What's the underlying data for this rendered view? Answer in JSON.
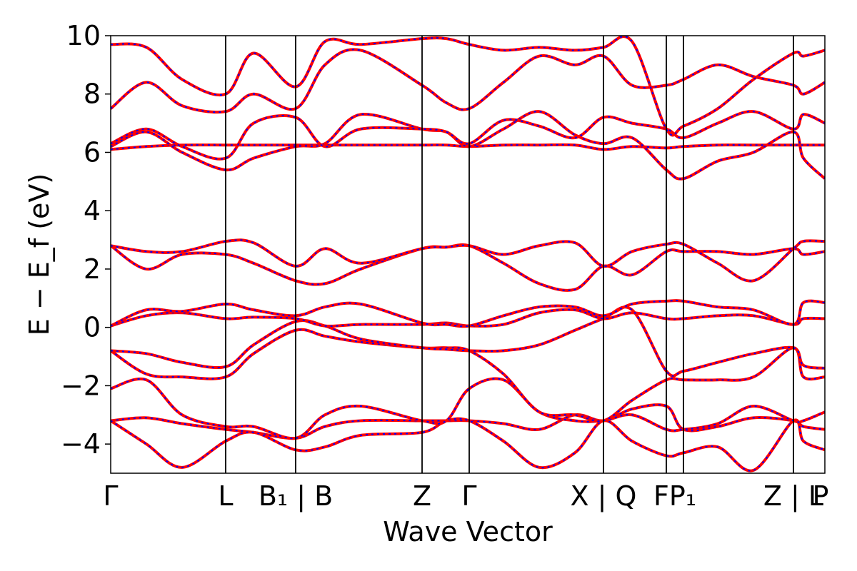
{
  "chart_data": {
    "type": "line",
    "title": "",
    "xlabel": "Wave Vector",
    "ylabel": "E − E_f (eV)",
    "ylim": [
      -5,
      10
    ],
    "yticks": [
      -4,
      -2,
      0,
      2,
      4,
      6,
      8,
      10
    ],
    "ytick_labels": [
      "−4",
      "−2",
      "0",
      "2",
      "4",
      "6",
      "8",
      "10"
    ],
    "xlim": [
      0,
      1
    ],
    "kpath_positions": [
      0.0,
      0.161,
      0.259,
      0.436,
      0.502,
      0.69,
      0.778,
      0.802,
      0.956,
      1.0
    ],
    "kpath_lines": [
      0.161,
      0.259,
      0.436,
      0.502,
      0.69,
      0.778,
      0.802,
      0.956
    ],
    "xtick_labels": [
      {
        "pos": 0.0,
        "text": "Γ"
      },
      {
        "pos": 0.161,
        "text": "L"
      },
      {
        "pos": 0.259,
        "text": "B₁ | B"
      },
      {
        "pos": 0.436,
        "text": "Z"
      },
      {
        "pos": 0.502,
        "text": "Γ"
      },
      {
        "pos": 0.69,
        "text": "X | Q"
      },
      {
        "pos": 0.79,
        "text": "FP₁"
      },
      {
        "pos": 0.956,
        "text": "Z | L"
      },
      {
        "pos": 1.0,
        "text": "P"
      }
    ],
    "colors": {
      "dft": "#ff0000",
      "wannier": "#0000ff",
      "kpath_line": "#000000"
    },
    "series": [
      {
        "x": [
          0.0,
          0.05,
          0.1,
          0.161,
          0.2,
          0.259,
          0.3,
          0.35,
          0.436,
          0.47,
          0.502,
          0.55,
          0.6,
          0.65,
          0.69,
          0.73,
          0.778,
          0.802,
          0.85,
          0.9,
          0.956,
          0.97,
          1.0
        ],
        "values": [
          -3.2,
          -3.1,
          -3.3,
          -3.5,
          -3.6,
          -3.8,
          -3.4,
          -3.2,
          -3.2,
          -3.2,
          -3.2,
          -3.3,
          -3.5,
          -3.0,
          -3.2,
          -2.8,
          -2.7,
          -3.5,
          -3.4,
          -3.1,
          -3.2,
          -3.4,
          -3.5
        ]
      },
      {
        "x": [
          0.0,
          0.05,
          0.1,
          0.161,
          0.2,
          0.259,
          0.3,
          0.35,
          0.436,
          0.47,
          0.502,
          0.55,
          0.6,
          0.65,
          0.69,
          0.73,
          0.778,
          0.802,
          0.85,
          0.9,
          0.956,
          0.97,
          1.0
        ],
        "values": [
          -3.2,
          -4.0,
          -4.8,
          -3.9,
          -3.6,
          -4.2,
          -4.1,
          -3.7,
          -3.6,
          -3.2,
          -3.2,
          -3.9,
          -4.8,
          -4.3,
          -3.2,
          -3.9,
          -4.4,
          -4.3,
          -4.1,
          -4.9,
          -3.2,
          -3.9,
          -4.2
        ]
      },
      {
        "x": [
          0.0,
          0.05,
          0.1,
          0.161,
          0.2,
          0.259,
          0.3,
          0.35,
          0.436,
          0.47,
          0.502,
          0.55,
          0.6,
          0.65,
          0.69,
          0.73,
          0.778,
          0.802,
          0.85,
          0.9,
          0.956,
          0.97,
          1.0
        ],
        "values": [
          -2.1,
          -1.8,
          -3.0,
          -3.4,
          -3.4,
          -3.8,
          -3.0,
          -2.7,
          -3.2,
          -3.2,
          -2.1,
          -1.8,
          -2.9,
          -3.2,
          -3.2,
          -3.0,
          -3.5,
          -3.5,
          -3.3,
          -2.7,
          -3.2,
          -3.2,
          -2.9
        ]
      },
      {
        "x": [
          0.0,
          0.05,
          0.1,
          0.161,
          0.2,
          0.259,
          0.3,
          0.35,
          0.436,
          0.47,
          0.502,
          0.55,
          0.6,
          0.65,
          0.69,
          0.73,
          0.778,
          0.802,
          0.85,
          0.9,
          0.956,
          0.97,
          1.0
        ],
        "values": [
          -0.8,
          -1.6,
          -1.7,
          -1.7,
          -0.9,
          -0.1,
          -0.3,
          -0.5,
          -0.7,
          -0.7,
          -0.8,
          -1.6,
          -2.9,
          -3.0,
          -3.2,
          -2.5,
          -1.8,
          -1.8,
          -1.8,
          -1.7,
          -0.7,
          -1.7,
          -1.7
        ]
      },
      {
        "x": [
          0.0,
          0.05,
          0.1,
          0.161,
          0.2,
          0.259,
          0.3,
          0.35,
          0.436,
          0.47,
          0.502,
          0.55,
          0.6,
          0.65,
          0.69,
          0.73,
          0.778,
          0.802,
          0.85,
          0.9,
          0.956,
          0.97,
          1.0
        ],
        "values": [
          -0.8,
          -0.9,
          -1.2,
          -1.35,
          -0.6,
          0.2,
          0.05,
          -0.4,
          -0.7,
          -0.75,
          -0.8,
          -0.8,
          -0.6,
          -0.1,
          0.3,
          0.6,
          -1.5,
          -1.5,
          -1.2,
          -0.9,
          -0.7,
          -1.3,
          -1.4
        ]
      },
      {
        "x": [
          0.0,
          0.05,
          0.1,
          0.161,
          0.2,
          0.259,
          0.3,
          0.35,
          0.436,
          0.47,
          0.502,
          0.55,
          0.6,
          0.65,
          0.69,
          0.73,
          0.778,
          0.802,
          0.85,
          0.9,
          0.956,
          0.97,
          1.0
        ],
        "values": [
          0.05,
          0.4,
          0.5,
          0.3,
          0.35,
          0.3,
          0.05,
          0.1,
          0.1,
          0.15,
          0.05,
          0.1,
          0.5,
          0.6,
          0.3,
          0.5,
          0.3,
          0.3,
          0.4,
          0.4,
          0.1,
          0.3,
          0.3
        ]
      },
      {
        "x": [
          0.0,
          0.05,
          0.1,
          0.161,
          0.2,
          0.259,
          0.3,
          0.35,
          0.436,
          0.47,
          0.502,
          0.55,
          0.6,
          0.65,
          0.69,
          0.73,
          0.778,
          0.802,
          0.85,
          0.9,
          0.956,
          0.97,
          1.0
        ],
        "values": [
          0.05,
          0.6,
          0.55,
          0.8,
          0.6,
          0.4,
          0.7,
          0.8,
          0.15,
          0.1,
          0.05,
          0.4,
          0.7,
          0.7,
          0.4,
          0.8,
          0.9,
          0.9,
          0.7,
          0.6,
          0.1,
          0.85,
          0.85
        ]
      },
      {
        "x": [
          0.0,
          0.05,
          0.1,
          0.161,
          0.2,
          0.259,
          0.3,
          0.35,
          0.436,
          0.47,
          0.502,
          0.55,
          0.6,
          0.65,
          0.69,
          0.73,
          0.778,
          0.802,
          0.85,
          0.9,
          0.956,
          0.97,
          1.0
        ],
        "values": [
          2.8,
          2.0,
          2.5,
          2.5,
          2.2,
          1.6,
          1.5,
          2.0,
          2.7,
          2.75,
          2.8,
          2.2,
          1.5,
          1.3,
          2.1,
          1.8,
          2.6,
          2.6,
          2.6,
          2.5,
          2.7,
          2.5,
          2.6
        ]
      },
      {
        "x": [
          0.0,
          0.05,
          0.1,
          0.161,
          0.2,
          0.259,
          0.3,
          0.35,
          0.436,
          0.47,
          0.502,
          0.55,
          0.6,
          0.65,
          0.69,
          0.73,
          0.778,
          0.802,
          0.85,
          0.9,
          0.956,
          0.97,
          1.0
        ],
        "values": [
          2.8,
          2.6,
          2.6,
          2.95,
          2.9,
          2.1,
          2.7,
          2.2,
          2.7,
          2.75,
          2.8,
          2.5,
          2.8,
          2.9,
          2.1,
          2.6,
          2.85,
          2.85,
          2.2,
          1.6,
          2.7,
          2.95,
          2.95
        ]
      },
      {
        "x": [
          0.0,
          0.05,
          0.1,
          0.161,
          0.2,
          0.259,
          0.3,
          0.35,
          0.436,
          0.47,
          0.502,
          0.55,
          0.6,
          0.65,
          0.69,
          0.73,
          0.778,
          0.802,
          0.85,
          0.9,
          0.956,
          0.97,
          1.0
        ],
        "values": [
          6.1,
          6.2,
          6.25,
          6.25,
          6.25,
          6.25,
          6.25,
          6.25,
          6.25,
          6.25,
          6.2,
          6.25,
          6.25,
          6.25,
          6.1,
          6.2,
          6.15,
          6.2,
          6.25,
          6.25,
          6.25,
          6.25,
          6.25
        ]
      },
      {
        "x": [
          0.0,
          0.05,
          0.1,
          0.161,
          0.2,
          0.259,
          0.3,
          0.35,
          0.436,
          0.47,
          0.502,
          0.55,
          0.6,
          0.65,
          0.69,
          0.73,
          0.778,
          0.802,
          0.85,
          0.9,
          0.956,
          0.97,
          1.0
        ],
        "values": [
          6.2,
          6.7,
          6.0,
          5.4,
          5.8,
          6.2,
          6.3,
          7.3,
          6.8,
          6.7,
          6.2,
          6.8,
          7.4,
          6.6,
          6.3,
          6.5,
          5.4,
          5.1,
          5.7,
          6.0,
          6.7,
          5.8,
          5.1
        ]
      },
      {
        "x": [
          0.0,
          0.05,
          0.1,
          0.161,
          0.2,
          0.259,
          0.3,
          0.35,
          0.436,
          0.47,
          0.502,
          0.55,
          0.6,
          0.65,
          0.69,
          0.73,
          0.778,
          0.802,
          0.85,
          0.9,
          0.956,
          0.97,
          1.0
        ],
        "values": [
          6.3,
          6.8,
          6.2,
          5.8,
          7.0,
          7.2,
          6.2,
          6.8,
          6.8,
          6.7,
          6.3,
          7.1,
          6.9,
          6.5,
          7.2,
          7.0,
          6.8,
          6.5,
          7.0,
          7.4,
          6.8,
          7.3,
          7.0
        ]
      },
      {
        "x": [
          0.0,
          0.05,
          0.1,
          0.161,
          0.2,
          0.259,
          0.3,
          0.35,
          0.436,
          0.47,
          0.502,
          0.55,
          0.6,
          0.65,
          0.69,
          0.73,
          0.778,
          0.802,
          0.85,
          0.9,
          0.956,
          0.97,
          1.0
        ],
        "values": [
          7.5,
          8.4,
          7.6,
          7.4,
          8.0,
          7.5,
          9.0,
          9.5,
          8.3,
          7.7,
          7.5,
          8.4,
          9.3,
          9.0,
          9.3,
          8.3,
          8.3,
          8.5,
          9.0,
          8.6,
          8.3,
          8.0,
          8.4
        ]
      },
      {
        "x": [
          0.0,
          0.05,
          0.1,
          0.161,
          0.2,
          0.259,
          0.3,
          0.35,
          0.436,
          0.47,
          0.502,
          0.55,
          0.6,
          0.65,
          0.69,
          0.73,
          0.778,
          0.802,
          0.85,
          0.9,
          0.956,
          0.97,
          1.0
        ],
        "values": [
          9.7,
          9.6,
          8.5,
          8.0,
          9.4,
          8.25,
          9.8,
          9.7,
          9.9,
          9.9,
          9.7,
          9.5,
          9.6,
          9.5,
          9.6,
          9.8,
          6.8,
          6.9,
          7.5,
          8.5,
          9.4,
          9.3,
          9.5
        ]
      }
    ]
  }
}
